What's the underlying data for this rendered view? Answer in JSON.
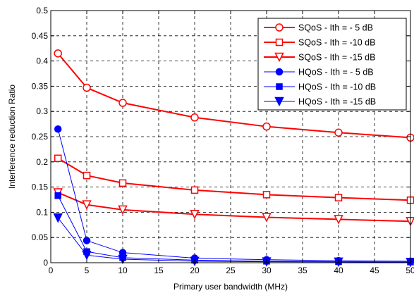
{
  "chart_data": {
    "type": "line",
    "title": "",
    "xlabel": "Primary user bandwidth (MHz)",
    "ylabel": "Interference reduction Ratio",
    "xlim": [
      0,
      50
    ],
    "ylim": [
      0,
      0.5
    ],
    "xticks": [
      "0",
      "5",
      "10",
      "15",
      "20",
      "25",
      "30",
      "35",
      "40",
      "45",
      "50"
    ],
    "yticks": [
      "0",
      "0.05",
      "0.1",
      "0.15",
      "0.2",
      "0.25",
      "0.3",
      "0.35",
      "0.4",
      "0.45",
      "0.5"
    ],
    "grid": true,
    "legend_position": "top-right",
    "series": [
      {
        "name": "SQoS - Ith = - 5 dB",
        "color": "#ff0000",
        "marker": "circle-open",
        "x": [
          1,
          5,
          10,
          20,
          30,
          40,
          50
        ],
        "y": [
          0.415,
          0.347,
          0.317,
          0.288,
          0.27,
          0.258,
          0.248
        ]
      },
      {
        "name": "SQoS - Ith = -10 dB",
        "color": "#ff0000",
        "marker": "square-open",
        "x": [
          1,
          5,
          10,
          20,
          30,
          40,
          50
        ],
        "y": [
          0.207,
          0.173,
          0.158,
          0.144,
          0.135,
          0.129,
          0.124
        ]
      },
      {
        "name": "SQoS - Ith = -15 dB",
        "color": "#ff0000",
        "marker": "triangle-down-open",
        "x": [
          1,
          5,
          10,
          20,
          30,
          40,
          50
        ],
        "y": [
          0.139,
          0.115,
          0.105,
          0.096,
          0.09,
          0.086,
          0.082
        ]
      },
      {
        "name": "HQoS - Ith = - 5 dB",
        "color": "#0000ff",
        "marker": "circle-filled",
        "x": [
          1,
          5,
          10,
          20,
          30,
          40,
          50
        ],
        "y": [
          0.265,
          0.044,
          0.02,
          0.009,
          0.006,
          0.004,
          0.003
        ]
      },
      {
        "name": "HQoS - Ith = -10 dB",
        "color": "#0000ff",
        "marker": "square-filled",
        "x": [
          1,
          5,
          10,
          20,
          30,
          40,
          50
        ],
        "y": [
          0.133,
          0.022,
          0.01,
          0.005,
          0.003,
          0.002,
          0.0015
        ]
      },
      {
        "name": "HQoS - Ith = -15 dB",
        "color": "#0000ff",
        "marker": "triangle-down-filled",
        "x": [
          1,
          5,
          10,
          20,
          30,
          40,
          50
        ],
        "y": [
          0.089,
          0.015,
          0.007,
          0.003,
          0.002,
          0.0015,
          0.001
        ]
      }
    ]
  }
}
